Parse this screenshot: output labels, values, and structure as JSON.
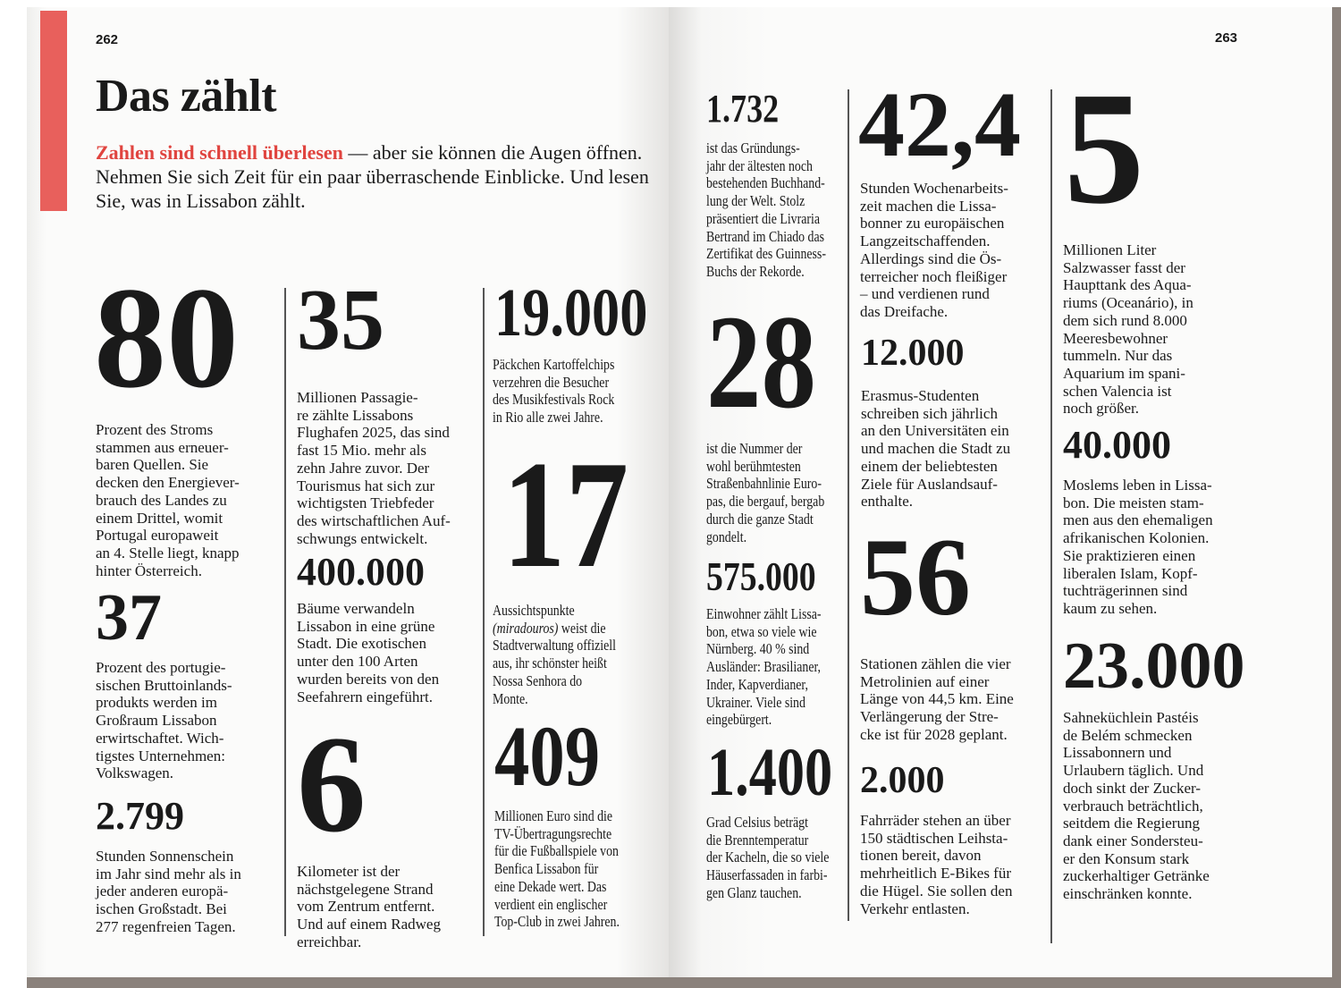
{
  "left_page": {
    "page_number": "262",
    "title": "Das zählt",
    "intro_highlight": "Zahlen sind schnell überlesen",
    "intro_rest": " — aber sie können die Augen öffnen. Nehmen Sie sich Zeit für ein paar überraschende Einblicke. Und lesen Sie, was in Lissabon zählt."
  },
  "right_page": {
    "page_number": "263"
  },
  "facts": [
    {
      "number": "80",
      "text": "Prozent des Stroms\nstammen aus erneuer-\nbaren Quellen. Sie\ndecken den Energiever-\nbrauch des Landes zu\neinem Drittel, womit\nPortugal europaweit\nan 4. Stelle liegt, knapp\nhinter Österreich."
    },
    {
      "number": "37",
      "text": "Prozent des portugie-\nsischen Bruttoinlands-\nprodukts werden im\nGroßraum Lissabon\nerwirtschaftet. Wich-\ntigstes Unternehmen:\nVolkswagen."
    },
    {
      "number": "2.799",
      "text": "Stunden Sonnenschein\nim Jahr sind mehr als in\njeder anderen europä-\nischen Großstadt. Bei\n277 regenfreien Tagen."
    },
    {
      "number": "35",
      "text": "Millionen Passagie-\nre zählte Lissabons\nFlughafen 2025, das sind\nfast 15 Mio. mehr als\nzehn Jahre zuvor. Der\nTourismus hat sich zur\nwichtigsten Triebfeder\ndes wirtschaftlichen Auf-\nschwungs entwickelt."
    },
    {
      "number": "400.000",
      "text": "Bäume verwandeln\nLissabon in eine grüne\nStadt. Die exotischen\nunter den 100 Arten\nwurden bereits von den\nSeefahrern eingeführt."
    },
    {
      "number": "6",
      "text": "Kilometer ist der\nnächstgelegene Strand\nvom Zentrum entfernt.\nUnd auf einem Radweg\nerreichbar."
    },
    {
      "number": "19.000",
      "text": "Päckchen Kartoffelchips\nverzehren die Besucher\ndes Musikfestivals Rock\nin Rio alle zwei Jahre."
    },
    {
      "number": "17",
      "text_pre": "Aussichtspunkte\n",
      "text_italic": "(miradouros)",
      "text": " weist die\nStadtverwaltung offiziell\naus, ihr schönster heißt\nNossa Senhora do\nMonte."
    },
    {
      "number": "409",
      "text": "Millionen Euro sind die\nTV-Übertragungsrechte\nfür die Fußballspiele von\nBenfica Lissabon für\neine Dekade wert. Das\nverdient ein englischer\nTop-Club in zwei Jahren."
    },
    {
      "number": "1.732",
      "text": "ist das Gründungs-\njahr der ältesten noch\nbestehenden Buchhand-\nlung der Welt. Stolz\npräsentiert die Livraria\nBertrand im Chiado das\nZertifikat des Guinness-\nBuchs der Rekorde."
    },
    {
      "number": "28",
      "text": "ist die Nummer der\nwohl berühmtesten\nStraßenbahnlinie Euro-\npas, die bergauf, bergab\ndurch die ganze Stadt\ngondelt."
    },
    {
      "number": "575.000",
      "text": "Einwohner zählt Lissa-\nbon, etwa so viele wie\nNürnberg. 40 % sind\nAusländer: Brasilianer,\nInder, Kapverdianer,\nUkrainer. Viele sind\neingebürgert."
    },
    {
      "number": "1.400",
      "text": "Grad Celsius beträgt\ndie Brenntemperatur\nder Kacheln, die so viele\nHäuserfassaden in farbi-\ngen Glanz tauchen."
    },
    {
      "number": "42,4",
      "text": "Stunden Wochenarbeits-\nzeit machen die Lissa-\nbonner zu europäischen\nLangzeitschaffenden.\nAllerdings sind die Ös-\nterreicher noch fleißiger\n– und verdienen rund\ndas Dreifache."
    },
    {
      "number": "12.000",
      "text": "Erasmus-Studenten\nschreiben sich jährlich\nan den Universitäten ein\nund machen die Stadt zu\neinem der beliebtesten\nZiele für Auslandsauf-\nenthalte."
    },
    {
      "number": "56",
      "text": "Stationen zählen die vier\nMetrolinien auf einer\nLänge von 44,5 km. Eine\nVerlängerung der Stre-\ncke ist für 2028 geplant."
    },
    {
      "number": "2.000",
      "text": "Fahrräder stehen an über\n150 städtischen Leihsta-\ntionen bereit, davon\nmehrheitlich E-Bikes für\ndie Hügel. Sie sollen den\nVerkehr entlasten."
    },
    {
      "number": "5",
      "text": "Millionen Liter\nSalzwasser fasst der\nHaupttank des Aqua-\nriums (Oceanário), in\ndem sich rund 8.000\nMeeresbewohner\ntummeln. Nur das\nAquarium im spani-\nschen Valencia ist\nnoch größer."
    },
    {
      "number": "40.000",
      "text": "Moslems leben in Lissa-\nbon. Die meisten stam-\nmen aus den ehemaligen\nafrikanischen Kolonien.\nSie praktizieren einen\nliberalen Islam, Kopf-\ntuchträgerinnen sind\nkaum zu sehen."
    },
    {
      "number": "23.000",
      "text": "Sahneküchlein Pastéis\nde Belém schmecken\nLissabonnern und\nUrlaubern täglich. Und\ndoch sinkt der Zucker-\nverbrauch beträchtlich,\nseitdem die Regierung\ndank einer Sondersteu-\ner den Konsum stark\nzuckerhaltiger Getränke\neinschränken konnte."
    }
  ],
  "colors": {
    "accent": "#e8605c",
    "highlight_text": "#e0443f",
    "book_edge": "#8a817b"
  }
}
